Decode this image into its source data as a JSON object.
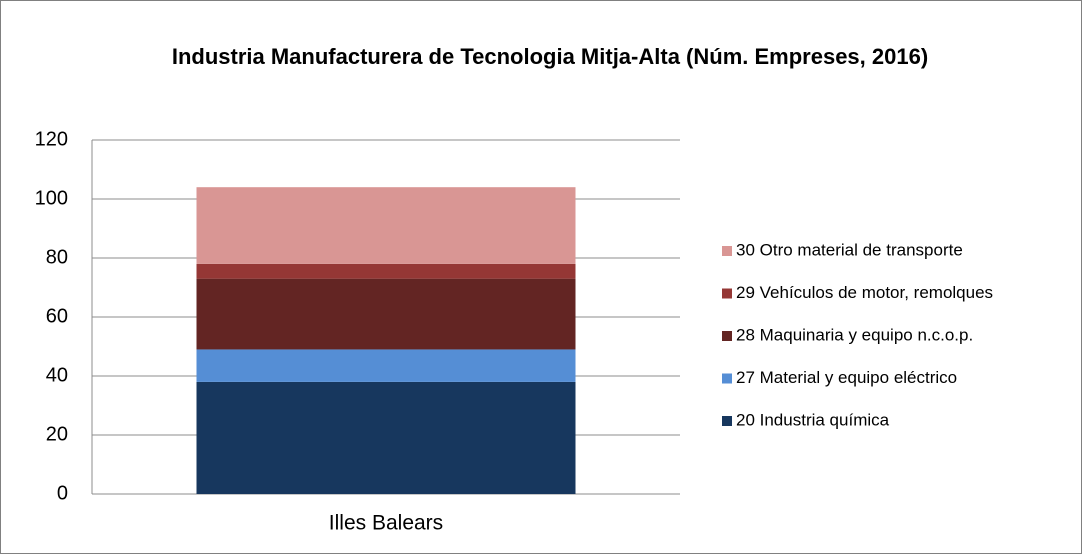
{
  "chart_data": {
    "type": "stacked_bar",
    "title": "Industria Manufacturera de Tecnologia Mitja-Alta (Núm. Empreses, 2016)",
    "categories": [
      "Illes Balears"
    ],
    "series": [
      {
        "name": "20 Industria química",
        "color": "#17375e",
        "values": [
          38
        ]
      },
      {
        "name": "27 Material y equipo eléctrico",
        "color": "#558ed5",
        "values": [
          11
        ]
      },
      {
        "name": "28 Maquinaria y equipo n.c.o.p.",
        "color": "#632523",
        "values": [
          24
        ]
      },
      {
        "name": "29 Vehículos de motor, remolques",
        "color": "#953735",
        "values": [
          5
        ]
      },
      {
        "name": "30 Otro material de transporte",
        "color": "#d99694",
        "values": [
          26
        ]
      }
    ],
    "ylim": [
      0,
      120
    ],
    "yticks": [
      0,
      20,
      40,
      60,
      80,
      100,
      120
    ],
    "grid": true,
    "legend": "right"
  }
}
